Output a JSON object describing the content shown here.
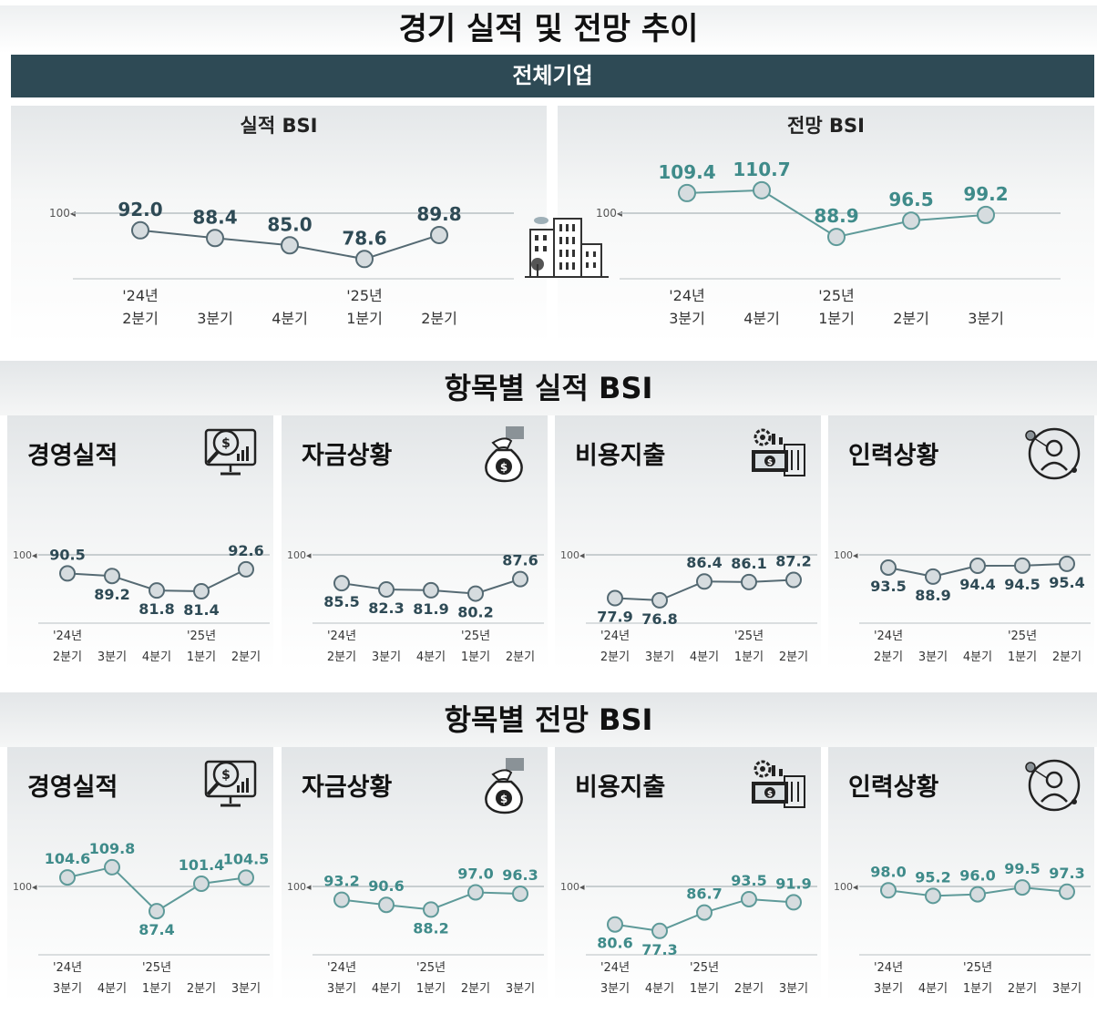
{
  "title": "경기 실적 및 전망 추이",
  "banner": "전체기업",
  "icons": {
    "building": "office-building-icon",
    "management": "magnifier-dollar-chart-icon",
    "funds": "money-bag-icon",
    "spending": "gear-factory-money-icon",
    "manpower": "person-network-icon"
  },
  "colors": {
    "banner": "#2e4a55",
    "line_result": "#556a73",
    "line_outlook": "#5e9a99",
    "marker_fill": "#d6dcdf",
    "label_result": "#2e4a55",
    "label_outlook": "#3f8b8a"
  },
  "sections": {
    "results_title": "항목별 실적 BSI",
    "outlook_title": "항목별 전망 BSI"
  },
  "chart_data": [
    {
      "id": "overall-results",
      "type": "line",
      "title": "실적 BSI",
      "reference": 100,
      "reference_label": "100",
      "categories": [
        {
          "year": "'24년",
          "quarter": "2분기"
        },
        {
          "year": "",
          "quarter": "3분기"
        },
        {
          "year": "",
          "quarter": "4분기"
        },
        {
          "year": "'25년",
          "quarter": "1분기"
        },
        {
          "year": "",
          "quarter": "2분기"
        }
      ],
      "values": [
        92.0,
        88.4,
        85.0,
        78.6,
        89.8
      ],
      "value_labels": [
        "92.0",
        "88.4",
        "85.0",
        "78.6",
        "89.8"
      ]
    },
    {
      "id": "overall-outlook",
      "type": "line",
      "title": "전망 BSI",
      "reference": 100,
      "reference_label": "100",
      "categories": [
        {
          "year": "'24년",
          "quarter": "3분기"
        },
        {
          "year": "",
          "quarter": "4분기"
        },
        {
          "year": "'25년",
          "quarter": "1분기"
        },
        {
          "year": "",
          "quarter": "2분기"
        },
        {
          "year": "",
          "quarter": "3분기"
        }
      ],
      "values": [
        109.4,
        110.7,
        88.9,
        96.5,
        99.2
      ],
      "value_labels": [
        "109.4",
        "110.7",
        "88.9",
        "96.5",
        "99.2"
      ]
    },
    {
      "id": "results-management",
      "type": "line",
      "title": "경영실적",
      "reference": 100,
      "reference_label": "100",
      "categories": [
        {
          "year": "'24년",
          "quarter": "2분기"
        },
        {
          "year": "",
          "quarter": "3분기"
        },
        {
          "year": "",
          "quarter": "4분기"
        },
        {
          "year": "'25년",
          "quarter": "1분기"
        },
        {
          "year": "",
          "quarter": "2분기"
        }
      ],
      "values": [
        90.5,
        89.2,
        81.8,
        81.4,
        92.6
      ],
      "value_labels": [
        "90.5",
        "89.2",
        "81.8",
        "81.4",
        "92.6"
      ]
    },
    {
      "id": "results-funds",
      "type": "line",
      "title": "자금상황",
      "reference": 100,
      "reference_label": "100",
      "categories": [
        {
          "year": "'24년",
          "quarter": "2분기"
        },
        {
          "year": "",
          "quarter": "3분기"
        },
        {
          "year": "",
          "quarter": "4분기"
        },
        {
          "year": "'25년",
          "quarter": "1분기"
        },
        {
          "year": "",
          "quarter": "2분기"
        }
      ],
      "values": [
        85.5,
        82.3,
        81.9,
        80.2,
        87.6
      ],
      "value_labels": [
        "85.5",
        "82.3",
        "81.9",
        "80.2",
        "87.6"
      ]
    },
    {
      "id": "results-spending",
      "type": "line",
      "title": "비용지출",
      "reference": 100,
      "reference_label": "100",
      "categories": [
        {
          "year": "'24년",
          "quarter": "2분기"
        },
        {
          "year": "",
          "quarter": "3분기"
        },
        {
          "year": "",
          "quarter": "4분기"
        },
        {
          "year": "'25년",
          "quarter": "1분기"
        },
        {
          "year": "",
          "quarter": "2분기"
        }
      ],
      "values": [
        77.9,
        76.8,
        86.4,
        86.1,
        87.2
      ],
      "value_labels": [
        "77.9",
        "76.8",
        "86.4",
        "86.1",
        "87.2"
      ]
    },
    {
      "id": "results-manpower",
      "type": "line",
      "title": "인력상황",
      "reference": 100,
      "reference_label": "100",
      "categories": [
        {
          "year": "'24년",
          "quarter": "2분기"
        },
        {
          "year": "",
          "quarter": "3분기"
        },
        {
          "year": "",
          "quarter": "4분기"
        },
        {
          "year": "'25년",
          "quarter": "1분기"
        },
        {
          "year": "",
          "quarter": "2분기"
        }
      ],
      "values": [
        93.5,
        88.9,
        94.4,
        94.5,
        95.4
      ],
      "value_labels": [
        "93.5",
        "88.9",
        "94.4",
        "94.5",
        "95.4"
      ]
    },
    {
      "id": "outlook-management",
      "type": "line",
      "title": "경영실적",
      "reference": 100,
      "reference_label": "100",
      "categories": [
        {
          "year": "'24년",
          "quarter": "3분기"
        },
        {
          "year": "",
          "quarter": "4분기"
        },
        {
          "year": "'25년",
          "quarter": "1분기"
        },
        {
          "year": "",
          "quarter": "2분기"
        },
        {
          "year": "",
          "quarter": "3분기"
        }
      ],
      "values": [
        104.6,
        109.8,
        87.4,
        101.4,
        104.5
      ],
      "value_labels": [
        "104.6",
        "109.8",
        "87.4",
        "101.4",
        "104.5"
      ]
    },
    {
      "id": "outlook-funds",
      "type": "line",
      "title": "자금상황",
      "reference": 100,
      "reference_label": "100",
      "categories": [
        {
          "year": "'24년",
          "quarter": "3분기"
        },
        {
          "year": "",
          "quarter": "4분기"
        },
        {
          "year": "'25년",
          "quarter": "1분기"
        },
        {
          "year": "",
          "quarter": "2분기"
        },
        {
          "year": "",
          "quarter": "3분기"
        }
      ],
      "values": [
        93.2,
        90.6,
        88.2,
        97.0,
        96.3
      ],
      "value_labels": [
        "93.2",
        "90.6",
        "88.2",
        "97.0",
        "96.3"
      ]
    },
    {
      "id": "outlook-spending",
      "type": "line",
      "title": "비용지출",
      "reference": 100,
      "reference_label": "100",
      "categories": [
        {
          "year": "'24년",
          "quarter": "3분기"
        },
        {
          "year": "",
          "quarter": "4분기"
        },
        {
          "year": "'25년",
          "quarter": "1분기"
        },
        {
          "year": "",
          "quarter": "2분기"
        },
        {
          "year": "",
          "quarter": "3분기"
        }
      ],
      "values": [
        80.6,
        77.3,
        86.7,
        93.5,
        91.9
      ],
      "value_labels": [
        "80.6",
        "77.3",
        "86.7",
        "93.5",
        "91.9"
      ]
    },
    {
      "id": "outlook-manpower",
      "type": "line",
      "title": "인력상황",
      "reference": 100,
      "reference_label": "100",
      "categories": [
        {
          "year": "'24년",
          "quarter": "3분기"
        },
        {
          "year": "",
          "quarter": "4분기"
        },
        {
          "year": "'25년",
          "quarter": "1분기"
        },
        {
          "year": "",
          "quarter": "2분기"
        },
        {
          "year": "",
          "quarter": "3분기"
        }
      ],
      "values": [
        98.0,
        95.2,
        96.0,
        99.5,
        97.3
      ],
      "value_labels": [
        "98.0",
        "95.2",
        "96.0",
        "99.5",
        "97.3"
      ]
    }
  ]
}
